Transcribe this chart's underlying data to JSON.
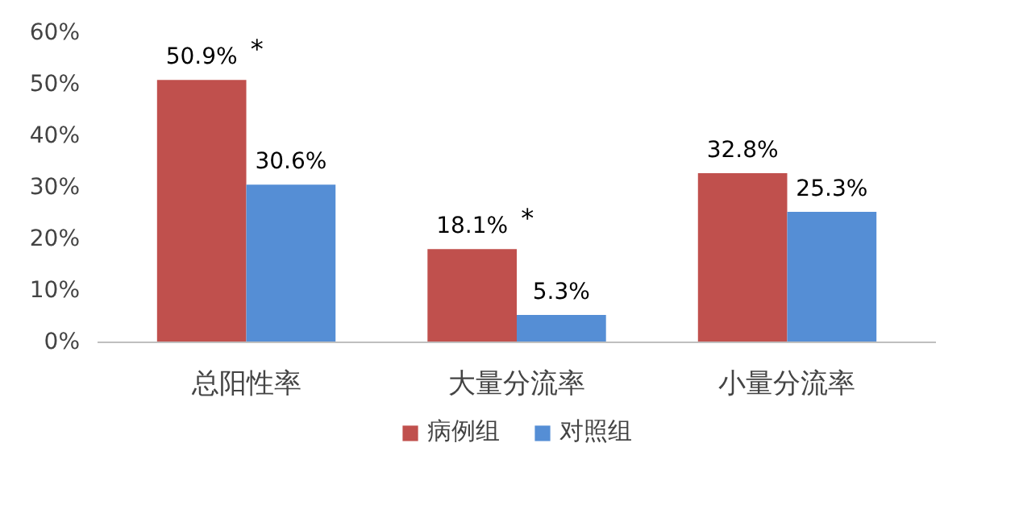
{
  "chart_data": {
    "type": "bar",
    "categories": [
      "总阳性率",
      "大量分流率",
      "小量分流率"
    ],
    "series": [
      {
        "name": "病例组",
        "color": "#c0504d",
        "values": [
          50.9,
          18.1,
          32.8
        ],
        "value_labels": [
          "50.9%",
          "18.1%",
          "32.8%"
        ]
      },
      {
        "name": "对照组",
        "color": "#558ed5",
        "values": [
          30.6,
          5.3,
          25.3
        ],
        "value_labels": [
          "30.6%",
          "5.3%",
          "25.3%"
        ]
      }
    ],
    "ylim": [
      0,
      60
    ],
    "yticks": [
      {
        "value": 0,
        "label": "0%"
      },
      {
        "value": 10,
        "label": "10%"
      },
      {
        "value": 20,
        "label": "20%"
      },
      {
        "value": 30,
        "label": "30%"
      },
      {
        "value": 40,
        "label": "40%"
      },
      {
        "value": 50,
        "label": "50%"
      },
      {
        "value": 60,
        "label": "60%"
      }
    ],
    "annotations": [
      {
        "text": "*",
        "x": "总阳性率",
        "y": 50.9
      },
      {
        "text": "*",
        "x": "大量分流率",
        "y": 18.1
      }
    ],
    "grid": false,
    "legend": "bottom"
  }
}
